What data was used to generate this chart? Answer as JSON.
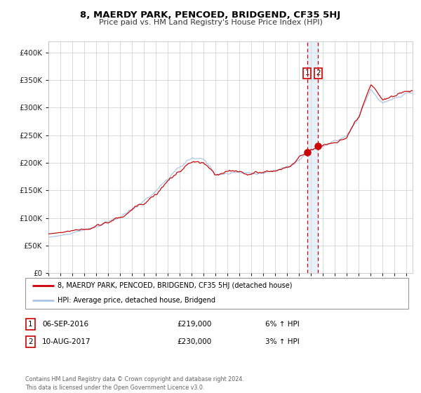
{
  "title": "8, MAERDY PARK, PENCOED, BRIDGEND, CF35 5HJ",
  "subtitle": "Price paid vs. HM Land Registry's House Price Index (HPI)",
  "legend_line1": "8, MAERDY PARK, PENCOED, BRIDGEND, CF35 5HJ (detached house)",
  "legend_line2": "HPI: Average price, detached house, Bridgend",
  "annotation1": {
    "num": "1",
    "date": "06-SEP-2016",
    "price": "£219,000",
    "hpi_pct": "6% ↑ HPI"
  },
  "annotation2": {
    "num": "2",
    "date": "10-AUG-2017",
    "price": "£230,000",
    "hpi_pct": "3% ↑ HPI"
  },
  "footnote": "Contains HM Land Registry data © Crown copyright and database right 2024.\nThis data is licensed under the Open Government Licence v3.0.",
  "sale1_year": 2016.67,
  "sale1_price": 219000,
  "sale2_year": 2017.58,
  "sale2_price": 230000,
  "hpi_color": "#aac4e8",
  "price_color": "#cc0000",
  "marker_color": "#cc0000",
  "vline_color": "#cc0000",
  "vband_color": "#d0e4f7",
  "box_color": "#cc0000",
  "grid_color": "#cccccc",
  "background_color": "#ffffff",
  "ylim": [
    0,
    420000
  ],
  "yticks": [
    0,
    50000,
    100000,
    150000,
    200000,
    250000,
    300000,
    350000,
    400000
  ],
  "xstart": 1995,
  "xend": 2025.5
}
